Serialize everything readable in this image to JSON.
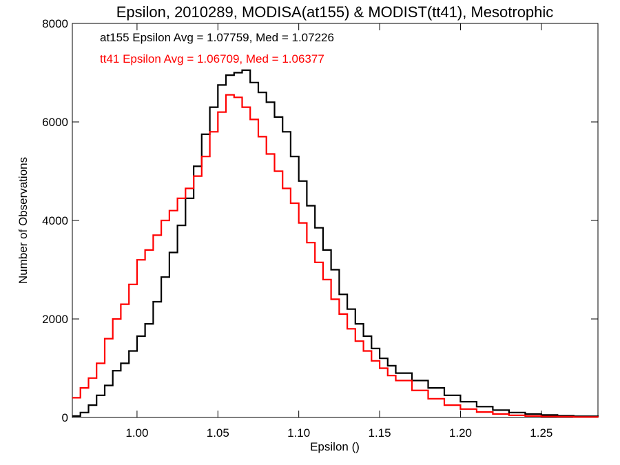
{
  "chart_data": {
    "type": "line",
    "title": "Epsilon, 2010289, MODISA(at155) & MODIST(tt41), Mesotrophic",
    "xlabel": "Epsilon ()",
    "ylabel": "Number of Observations",
    "xlim": [
      0.96,
      1.285
    ],
    "ylim": [
      0,
      8000
    ],
    "xticks": [
      1.0,
      1.05,
      1.1,
      1.15,
      1.2,
      1.25
    ],
    "xtick_labels": [
      "1.00",
      "1.05",
      "1.10",
      "1.15",
      "1.20",
      "1.25"
    ],
    "yticks": [
      0,
      2000,
      4000,
      6000,
      8000
    ],
    "ytick_labels": [
      "0",
      "2000",
      "4000",
      "6000",
      "8000"
    ],
    "grid": false,
    "step": true,
    "series": [
      {
        "name": "at155",
        "color": "#000000",
        "x": [
          0.96,
          0.965,
          0.97,
          0.975,
          0.98,
          0.985,
          0.99,
          0.995,
          1.0,
          1.005,
          1.01,
          1.015,
          1.02,
          1.025,
          1.03,
          1.035,
          1.04,
          1.045,
          1.05,
          1.055,
          1.06,
          1.065,
          1.07,
          1.075,
          1.08,
          1.085,
          1.09,
          1.095,
          1.1,
          1.105,
          1.11,
          1.115,
          1.12,
          1.125,
          1.13,
          1.135,
          1.14,
          1.145,
          1.15,
          1.155,
          1.16,
          1.17,
          1.18,
          1.19,
          1.2,
          1.21,
          1.22,
          1.23,
          1.24,
          1.25,
          1.26,
          1.27,
          1.285
        ],
        "y": [
          30,
          100,
          250,
          450,
          650,
          950,
          1100,
          1350,
          1650,
          1900,
          2350,
          2850,
          3350,
          3900,
          4450,
          5100,
          5750,
          6300,
          6750,
          6950,
          7000,
          7050,
          6800,
          6600,
          6400,
          6100,
          5800,
          5300,
          4800,
          4300,
          3850,
          3400,
          3000,
          2500,
          2200,
          1900,
          1650,
          1400,
          1200,
          1050,
          900,
          750,
          600,
          450,
          320,
          220,
          150,
          100,
          70,
          50,
          35,
          25,
          15
        ]
      },
      {
        "name": "tt41",
        "color": "#ff0000",
        "x": [
          0.96,
          0.965,
          0.97,
          0.975,
          0.98,
          0.985,
          0.99,
          0.995,
          1.0,
          1.005,
          1.01,
          1.015,
          1.02,
          1.025,
          1.03,
          1.035,
          1.04,
          1.045,
          1.05,
          1.055,
          1.06,
          1.065,
          1.07,
          1.075,
          1.08,
          1.085,
          1.09,
          1.095,
          1.1,
          1.105,
          1.11,
          1.115,
          1.12,
          1.125,
          1.13,
          1.135,
          1.14,
          1.145,
          1.15,
          1.155,
          1.16,
          1.17,
          1.18,
          1.19,
          1.2,
          1.21,
          1.22,
          1.23,
          1.24,
          1.25,
          1.26,
          1.27,
          1.285
        ],
        "y": [
          400,
          600,
          800,
          1100,
          1600,
          2000,
          2300,
          2700,
          3200,
          3400,
          3700,
          4000,
          4200,
          4450,
          4650,
          4900,
          5300,
          5800,
          6200,
          6550,
          6500,
          6300,
          6050,
          5700,
          5350,
          5000,
          4650,
          4350,
          3950,
          3550,
          3150,
          2800,
          2400,
          2100,
          1800,
          1550,
          1350,
          1150,
          1000,
          850,
          750,
          550,
          380,
          250,
          170,
          110,
          70,
          45,
          30,
          20,
          15,
          10,
          5
        ]
      }
    ],
    "annotations": [
      {
        "text": "at155 Epsilon Avg = 1.07759, Med = 1.07226",
        "color": "#000000"
      },
      {
        "text": "tt41 Epsilon Avg = 1.06709, Med = 1.06377",
        "color": "#ff0000"
      }
    ]
  }
}
